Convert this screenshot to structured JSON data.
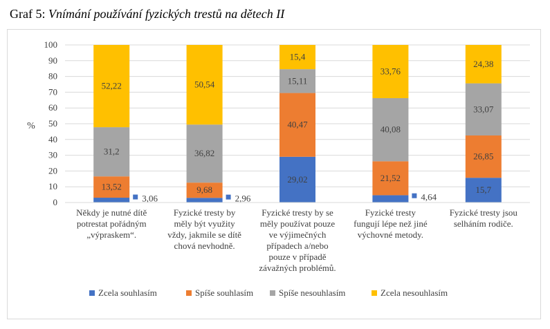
{
  "title": {
    "prefix": "Graf 5: ",
    "main": "Vnímání používání fyzických trestů na dětech II"
  },
  "colors": {
    "zcela_souhlasim": "#4472C4",
    "spise_souhlasim": "#ED7D31",
    "spise_nesouhlasim": "#A5A5A5",
    "zcela_nesouhlasim": "#FFC000",
    "grid": "#d9d9d9",
    "axis_text": "#404040"
  },
  "chart_data": {
    "type": "bar",
    "stacked": true,
    "ylabel": "%",
    "ylim": [
      0,
      100
    ],
    "yticks": [
      "0",
      "10",
      "20",
      "30",
      "40",
      "50",
      "60",
      "70",
      "80",
      "90",
      "100"
    ],
    "grid": true,
    "legend_position": "bottom",
    "categories": [
      [
        "Někdy je nutné dítě",
        "potrestat pořádným",
        "„výpraskem“."
      ],
      [
        "Fyzické tresty by",
        "měly být využity",
        "vždy, jakmile se dítě",
        "chová nevhodně."
      ],
      [
        "Fyzické tresty by se",
        "měly používat pouze",
        "ve výjimečných",
        "případech a/nebo",
        "pouze v případě",
        "závažných problémů."
      ],
      [
        "Fyzické tresty",
        "fungují lépe než jiné",
        "výchovné metody."
      ],
      [
        "Fyzické tresty jsou",
        "selháním rodiče."
      ]
    ],
    "series": [
      {
        "name": "Zcela souhlasím",
        "values": [
          3.06,
          2.96,
          29.02,
          4.64,
          15.7
        ],
        "labels": [
          "3,06",
          "2,96",
          "29,02",
          "4,64",
          "15,7"
        ],
        "label_outside": [
          true,
          true,
          false,
          true,
          false
        ]
      },
      {
        "name": "Spíše souhlasím",
        "values": [
          13.52,
          9.68,
          40.47,
          21.52,
          26.85
        ],
        "labels": [
          "13,52",
          "9,68",
          "40,47",
          "21,52",
          "26,85"
        ]
      },
      {
        "name": "Spíše nesouhlasím",
        "values": [
          31.2,
          36.82,
          15.11,
          40.08,
          33.07
        ],
        "labels": [
          "31,2",
          "36,82",
          "15,11",
          "40,08",
          "33,07"
        ]
      },
      {
        "name": "Zcela nesouhlasím",
        "values": [
          52.22,
          50.54,
          15.4,
          33.76,
          24.38
        ],
        "labels": [
          "52,22",
          "50,54",
          "15,4",
          "33,76",
          "24,38"
        ]
      }
    ]
  }
}
